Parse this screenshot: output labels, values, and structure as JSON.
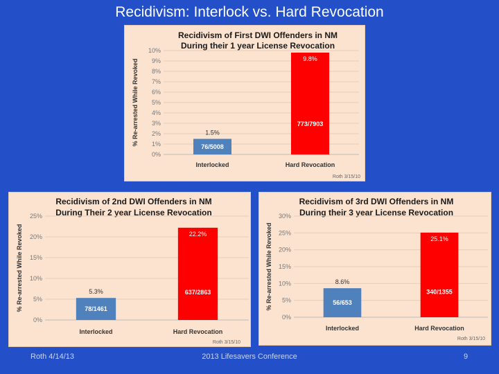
{
  "slide": {
    "title": "Recidivism: Interlock vs. Hard Revocation",
    "footer_left": "Roth 4/14/13",
    "footer_center": "2013 Lifesavers Conference",
    "page_number": "9"
  },
  "chart_data": [
    {
      "type": "bar",
      "title_lines": [
        "Recidivism of First DWI Offenders in NM",
        "During their 1 year License Revocation"
      ],
      "ylabel": "% Re-arrested While Revoked",
      "categories": [
        "Interlocked",
        "Hard Revocation"
      ],
      "values": [
        1.5,
        9.8
      ],
      "value_labels": [
        "1.5%",
        "9.8%"
      ],
      "count_labels": [
        "76/5008",
        "773/7903"
      ],
      "colors": [
        "#4f81bd",
        "#ff0000"
      ],
      "ylim": [
        0,
        10
      ],
      "yticks": [
        0,
        1,
        2,
        3,
        4,
        5,
        6,
        7,
        8,
        9,
        10
      ],
      "tick_suffix": "%",
      "grid": true,
      "credit": "Roth 3/15/10"
    },
    {
      "type": "bar",
      "title_lines": [
        "Recidivism of 2nd DWI Offenders in NM",
        "During Their 2 year License Revocation"
      ],
      "ylabel": "% Re-arrested While Revoked",
      "categories": [
        "Interlocked",
        "Hard Revocation"
      ],
      "values": [
        5.3,
        22.2
      ],
      "value_labels": [
        "5.3%",
        "22.2%"
      ],
      "count_labels": [
        "78/1461",
        "637/2863"
      ],
      "colors": [
        "#4f81bd",
        "#ff0000"
      ],
      "ylim": [
        0,
        25
      ],
      "yticks": [
        0,
        5,
        10,
        15,
        20,
        25
      ],
      "tick_suffix": "%",
      "grid": true,
      "credit": "Roth 3/15/10"
    },
    {
      "type": "bar",
      "title_lines": [
        "Recidivism of 3rd DWI Offenders in NM",
        "During their 3 year License Revocation"
      ],
      "ylabel": "% Re-arrested While Revoked",
      "categories": [
        "Interlocked",
        "Hard Revocation"
      ],
      "values": [
        8.6,
        25.1
      ],
      "value_labels": [
        "8.6%",
        "25.1%"
      ],
      "count_labels": [
        "56/653",
        "340/1355"
      ],
      "colors": [
        "#4f81bd",
        "#ff0000"
      ],
      "ylim": [
        0,
        30
      ],
      "yticks": [
        0,
        5,
        10,
        15,
        20,
        25,
        30
      ],
      "tick_suffix": "%",
      "grid": true,
      "credit": "Roth 3/15/10"
    }
  ]
}
